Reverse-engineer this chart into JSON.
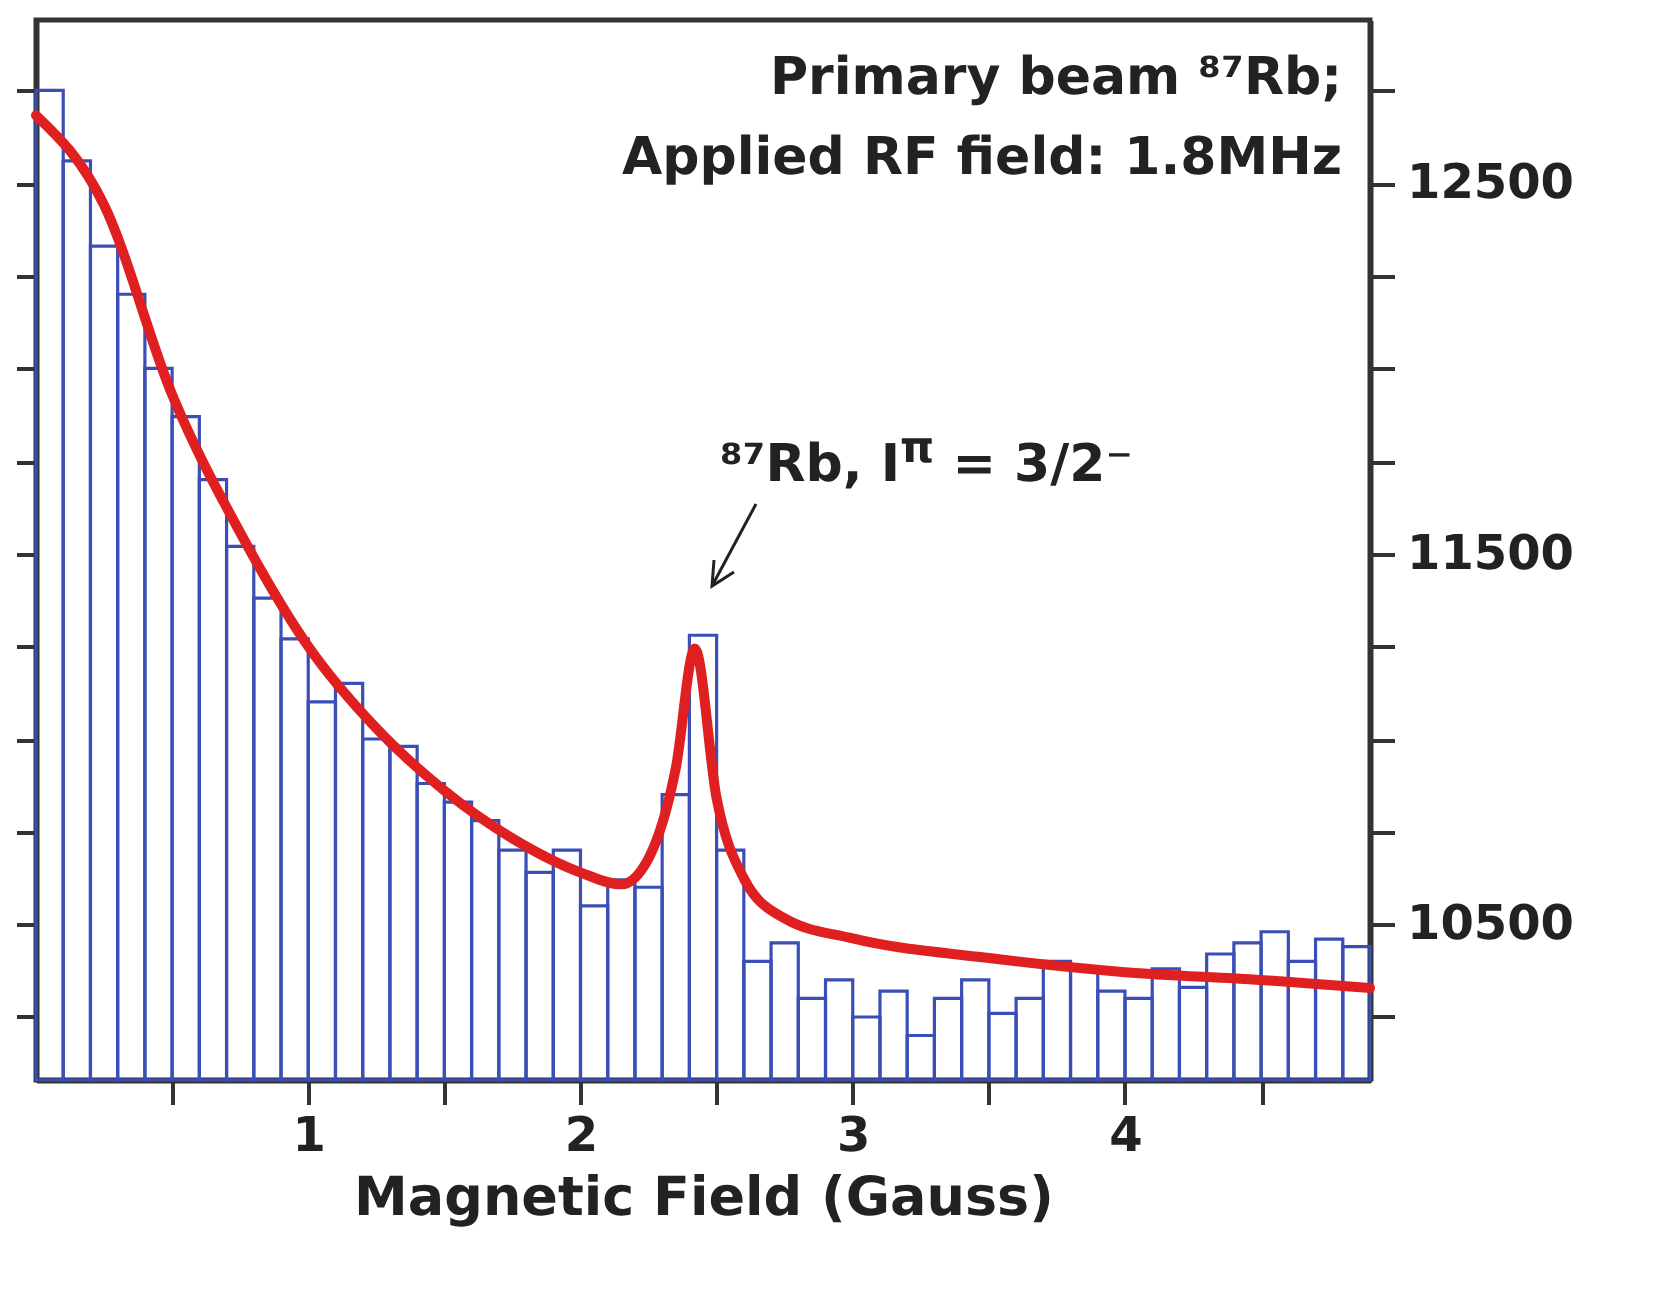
{
  "chart_data": {
    "type": "histogram",
    "xlabel": "Magnetic Field (Gauss)",
    "annotations": [
      "Primary beam ⁸⁷Rb;",
      "Applied RF field: 1.8MHz",
      "⁸⁷Rb,  I$^{π}$ = 3/2⁻"
    ],
    "xlim": [
      0,
      4.9
    ],
    "xticks": [
      {
        "value": 0.5,
        "label": null
      },
      1,
      {
        "value": 1.5,
        "label": null
      },
      2,
      {
        "value": 2.5,
        "label": null
      },
      3,
      {
        "value": 3.5,
        "label": null
      },
      4,
      {
        "value": 4.5,
        "label": null
      }
    ],
    "ylim": [
      10080,
      12940
    ],
    "yticks": [
      {
        "value": 10250,
        "label": null
      },
      10500,
      {
        "value": 10750,
        "label": null
      },
      {
        "value": 11000,
        "label": null
      },
      {
        "value": 11250,
        "label": null
      },
      11500,
      {
        "value": 11750,
        "label": null
      },
      {
        "value": 12000,
        "label": null
      },
      {
        "value": 12250,
        "label": null
      },
      12500,
      {
        "value": 12750,
        "label": null
      }
    ],
    "series": [
      {
        "color": "#3a4fb5",
        "bins": [
          0,
          0.1,
          0.2,
          0.3,
          0.4,
          0.5,
          0.6,
          0.7,
          0.8,
          0.9,
          1.0,
          1.1,
          1.2,
          1.3,
          1.4,
          1.5,
          1.6,
          1.7,
          1.8,
          1.9,
          2.0,
          2.1,
          2.2,
          2.3,
          2.4,
          2.5,
          2.6,
          2.7,
          2.8,
          2.9,
          3.0,
          3.1,
          3.2,
          3.3,
          3.4,
          3.5,
          3.6,
          3.7,
          3.8,
          3.9,
          4.0,
          4.1,
          4.2,
          4.3,
          4.4,
          4.5,
          4.6,
          4.7,
          4.8,
          4.9
        ],
        "values": [
          12750,
          12560,
          12330,
          12200,
          12000,
          11870,
          11700,
          11520,
          11380,
          11270,
          11100,
          11150,
          11000,
          10980,
          10880,
          10830,
          10780,
          10700,
          10640,
          10700,
          10550,
          10620,
          10600,
          10850,
          11280,
          10700,
          10400,
          10450,
          10300,
          10350,
          10250,
          10320,
          10200,
          10300,
          10350,
          10260,
          10300,
          10400,
          10380,
          10320,
          10300,
          10380,
          10330,
          10420,
          10450,
          10480,
          10400,
          10460,
          10440
        ]
      },
      {
        "type": "line",
        "color": "#e02020",
        "x": [
          0,
          0.25,
          0.5,
          0.75,
          1.0,
          1.25,
          1.5,
          1.75,
          2.0,
          2.15,
          2.25,
          2.35,
          2.42,
          2.5,
          2.6,
          2.75,
          3.0,
          3.5,
          4.0,
          4.5,
          4.9
        ],
        "values": [
          12683,
          12441,
          11929,
          11557,
          11250,
          11029,
          10861,
          10732,
          10640,
          10608,
          10678,
          10921,
          11244,
          10840,
          10624,
          10516,
          10462,
          10409,
          10371,
          10350,
          10328
        ]
      }
    ]
  }
}
